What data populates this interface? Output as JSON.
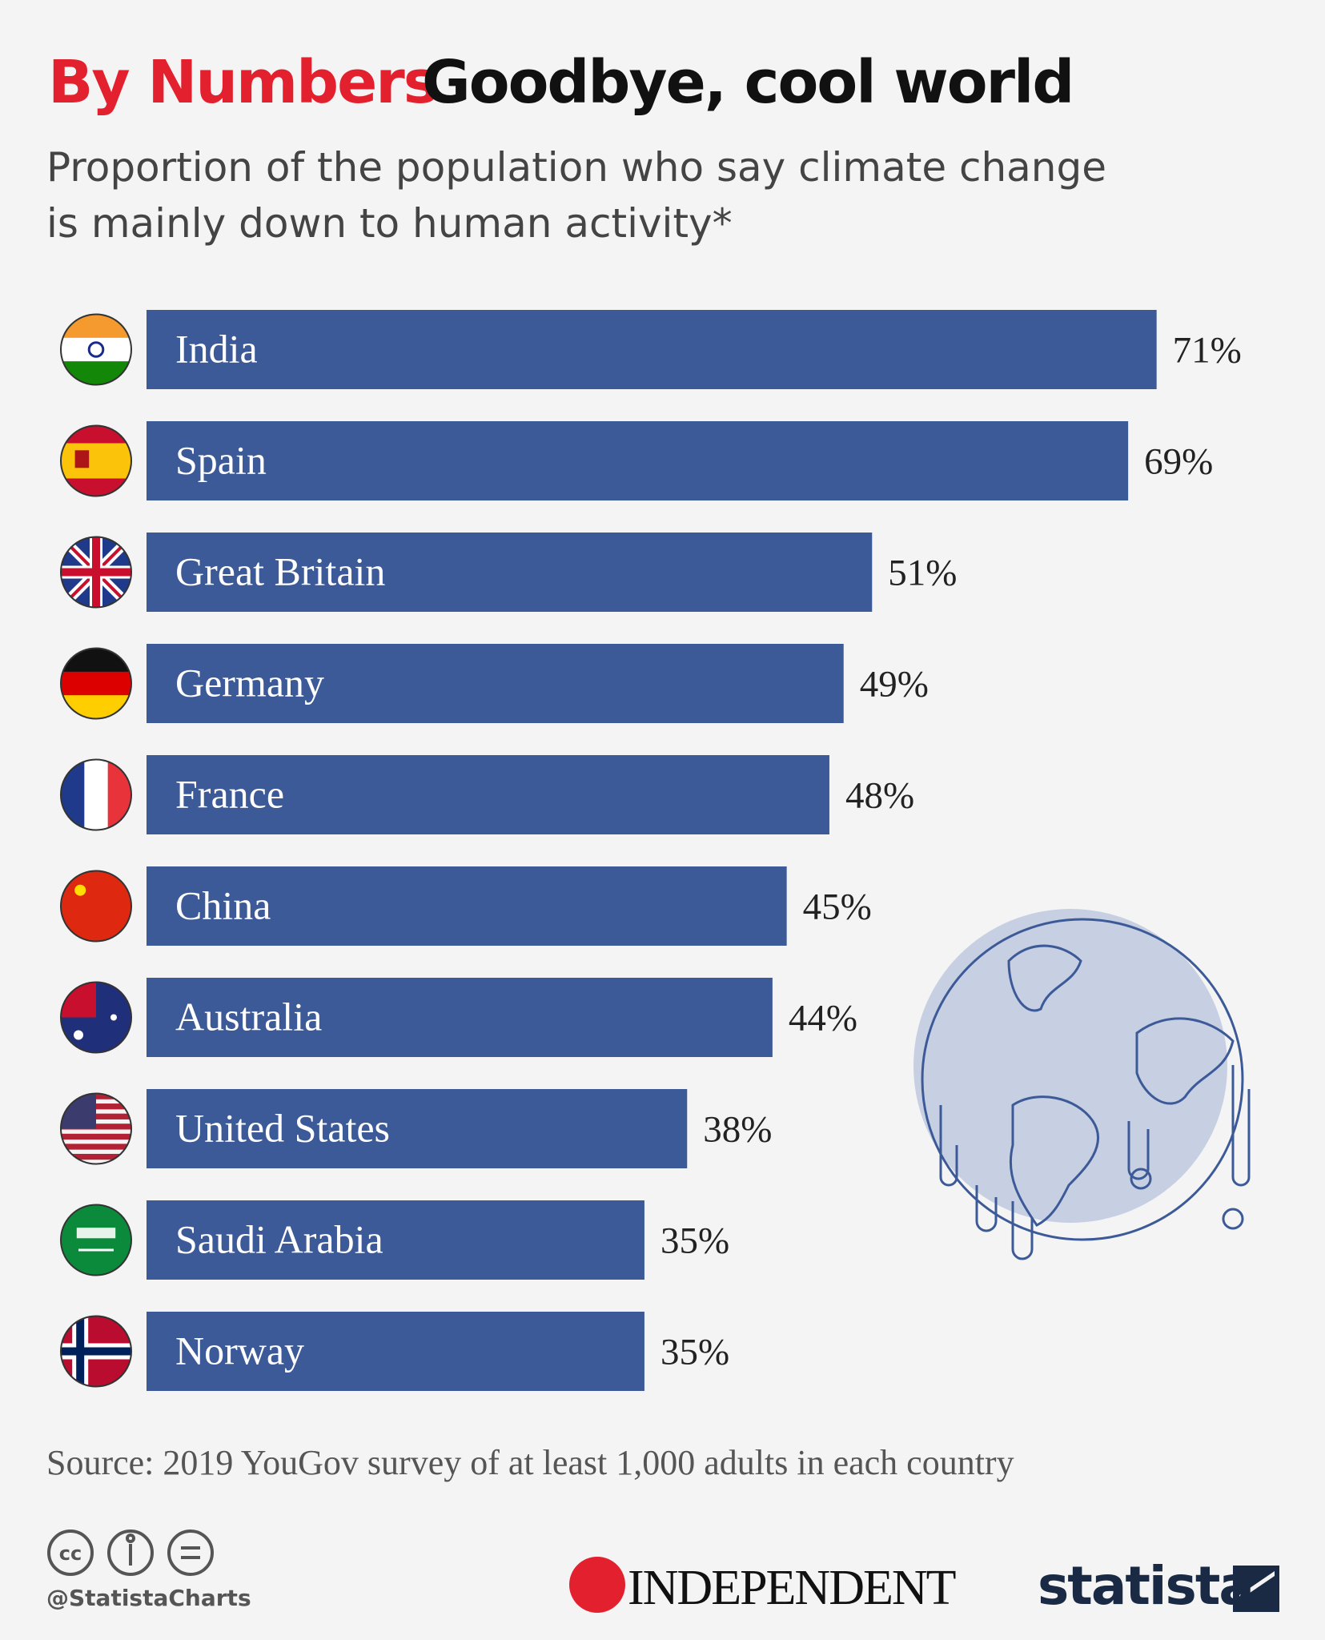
{
  "chart_data": {
    "type": "bar",
    "kicker": "By Numbers",
    "title": "Goodbye, cool world",
    "subtitle": [
      "Proportion of the population who say climate change",
      "is mainly down to human activity*"
    ],
    "categories": [
      "India",
      "Spain",
      "Great Britain",
      "Germany",
      "France",
      "China",
      "Australia",
      "United States",
      "Saudi Arabia",
      "Norway"
    ],
    "values": [
      71,
      69,
      51,
      49,
      48,
      45,
      44,
      38,
      35,
      35
    ],
    "value_labels": [
      "71%",
      "69%",
      "51%",
      "49%",
      "48%",
      "45%",
      "44%",
      "38%",
      "35%",
      "35%"
    ],
    "color": "#3d5a98",
    "source": "Source: 2019 YouGov survey of at least 1,000 adults in each country"
  },
  "footer": {
    "handle": "@StatistaCharts",
    "logos": [
      "INDEPENDENT",
      "statista"
    ]
  }
}
